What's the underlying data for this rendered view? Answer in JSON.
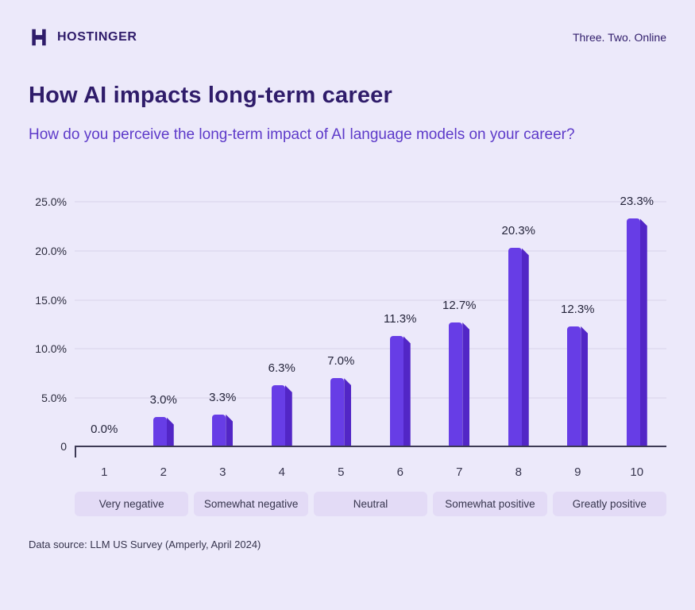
{
  "header": {
    "brand": "HOSTINGER",
    "tagline": "Three. Two. Online"
  },
  "title": "How AI impacts long-term career",
  "subtitle": "How do you perceive the long-term impact of AI language models on your career?",
  "chart_data": {
    "type": "bar",
    "categories": [
      "1",
      "2",
      "3",
      "4",
      "5",
      "6",
      "7",
      "8",
      "9",
      "10"
    ],
    "values": [
      0.0,
      3.0,
      3.3,
      6.3,
      7.0,
      11.3,
      12.7,
      20.3,
      12.3,
      23.3
    ],
    "value_labels": [
      "0.0%",
      "3.0%",
      "3.3%",
      "6.3%",
      "7.0%",
      "11.3%",
      "12.7%",
      "20.3%",
      "12.3%",
      "23.3%"
    ],
    "title": "How AI impacts long-term career",
    "xlabel": "",
    "ylabel": "",
    "ylim": [
      0,
      25
    ],
    "yticks": [
      {
        "value": 0,
        "label": "0"
      },
      {
        "value": 5,
        "label": "5.0%"
      },
      {
        "value": 10,
        "label": "10.0%"
      },
      {
        "value": 15,
        "label": "15.0%"
      },
      {
        "value": 20,
        "label": "20.0%"
      },
      {
        "value": 25,
        "label": "25.0%"
      }
    ],
    "grid": true,
    "legend": "none",
    "bar_color": "#673de6",
    "bar_shadow_color": "#5226c6",
    "group_labels": [
      "Very negative",
      "Somewhat negative",
      "Neutral",
      "Somewhat positive",
      "Greatly positive"
    ]
  },
  "footer": "Data source: LLM US Survey (Amperly, April 2024)"
}
